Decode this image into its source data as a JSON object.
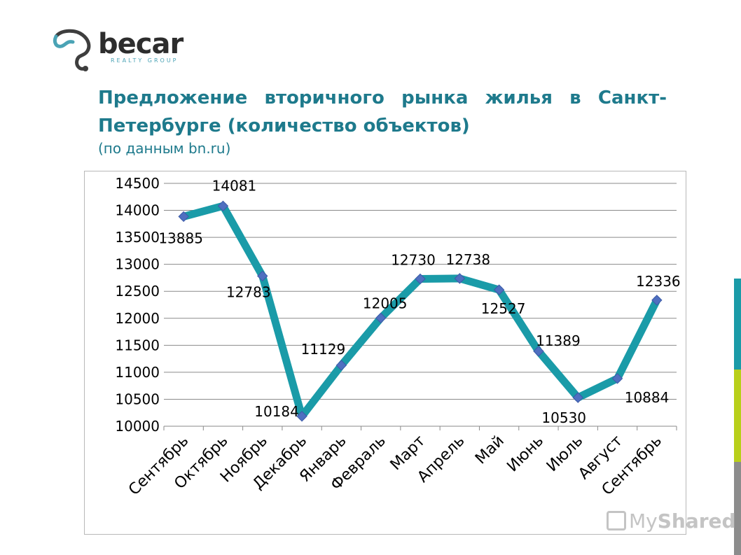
{
  "logo": {
    "wordmark": "becar",
    "tagline": "REALTY GROUP"
  },
  "header": {
    "title": "Предложение вторичного рынка жилья в Санкт-Петербурге (количество объектов)",
    "subtitle": "(по данным bn.ru)"
  },
  "watermark": {
    "prefix": "My",
    "suffix": "Shared"
  },
  "colors": {
    "line": "#1a9ba8",
    "marker": "#4f6fc0",
    "title": "#1e7a8c",
    "side_bar": [
      "#1a9ba8",
      "#b8cf1a",
      "#8c8c8c"
    ]
  },
  "chart_data": {
    "type": "line",
    "categories": [
      "Сентябрь",
      "Октябрь",
      "Ноябрь",
      "Декабрь",
      "Январь",
      "Февраль",
      "Март",
      "Апрель",
      "Май",
      "Июнь",
      "Июль",
      "Август",
      "Сентябрь"
    ],
    "values": [
      13885,
      14081,
      12783,
      10184,
      11129,
      12005,
      12730,
      12738,
      12527,
      11389,
      10530,
      10884,
      12336
    ],
    "data_labels": [
      "13885",
      "14081",
      "12783",
      "10184",
      "11129",
      "12005",
      "12730",
      "12738",
      "12527",
      "11389",
      "10530",
      "10884",
      "12336"
    ],
    "ylim": [
      10000,
      14500
    ],
    "y_ticks": [
      10000,
      10500,
      11000,
      11500,
      12000,
      12500,
      13000,
      13500,
      14000,
      14500
    ],
    "y_tick_labels": [
      "10000",
      "10500",
      "11000",
      "11500",
      "12000",
      "12500",
      "13000",
      "13500",
      "14000",
      "14500"
    ],
    "grid": true,
    "legend": "none",
    "title": "",
    "xlabel": "",
    "ylabel": ""
  }
}
